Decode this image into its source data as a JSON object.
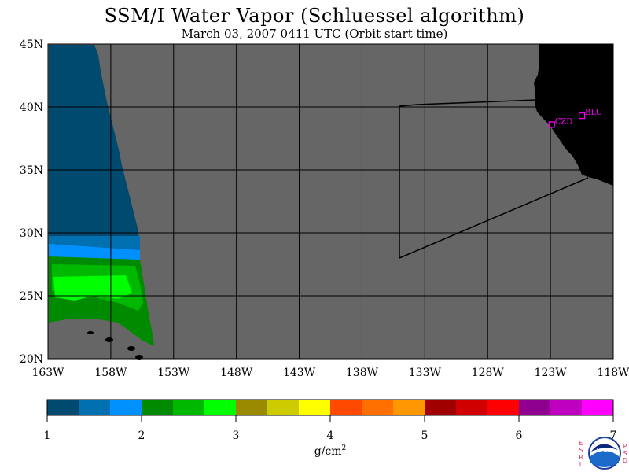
{
  "header": {
    "title": "SSM/I Water Vapor (Schluessel algorithm)",
    "subtitle": "March 03, 2007  0411 UTC  (Orbit start time)"
  },
  "map": {
    "lat_labels": [
      "45N",
      "40N",
      "35N",
      "30N",
      "25N",
      "20N"
    ],
    "lat_values": [
      45,
      40,
      35,
      30,
      25,
      20
    ],
    "lon_labels": [
      "163W",
      "158W",
      "153W",
      "148W",
      "143W",
      "138W",
      "133W",
      "128W",
      "123W",
      "118W"
    ],
    "lon_values": [
      -163,
      -158,
      -153,
      -148,
      -143,
      -138,
      -133,
      -128,
      -123,
      -118
    ],
    "stations": [
      {
        "code": "CZD",
        "lon": -122.9,
        "lat": 38.6
      },
      {
        "code": "BLU",
        "lon": -120.5,
        "lat": 39.3
      }
    ],
    "colors": {
      "nodata": "#666666",
      "land": "#000000",
      "station": "#ff00ff"
    }
  },
  "colorbar": {
    "colors": [
      "#004a70",
      "#0070b0",
      "#0090ff",
      "#008a00",
      "#00b800",
      "#00ff00",
      "#9a8a00",
      "#cccc00",
      "#ffff00",
      "#ff4800",
      "#ff7000",
      "#ff9800",
      "#a00000",
      "#d00000",
      "#ff0000",
      "#900090",
      "#c000c0",
      "#ff00ff"
    ],
    "tick_labels": [
      "1",
      "2",
      "3",
      "4",
      "5",
      "6",
      "7"
    ],
    "range": [
      1,
      7
    ],
    "unit": "g/cm",
    "unit_sup": "2"
  },
  "logo": {
    "left_letters": [
      "E",
      "S",
      "R",
      "L"
    ],
    "right_letters": [
      "P",
      "S",
      "D"
    ],
    "center": "NOAA"
  }
}
